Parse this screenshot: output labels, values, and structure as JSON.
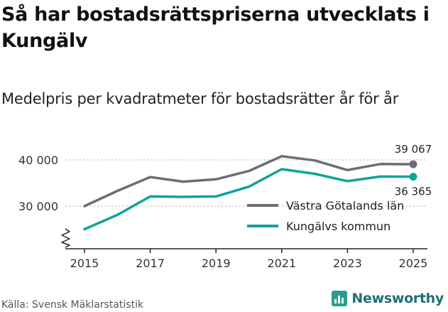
{
  "header": {
    "title": "Så har bostadsrättspriserna utvecklats i Kungälv",
    "subtitle": "Medelpris per kvadratmeter för bostadsrätter år för år"
  },
  "footer": {
    "source": "Källa: Svensk Mäklarstatistik",
    "brand": "Newsworthy"
  },
  "colors": {
    "vastra_gotaland": "#6d6d72",
    "kungalv": "#11a398",
    "grid": "#c8c8c8",
    "axis": "#222222",
    "brand": "#2a9d8f"
  },
  "chart_data": {
    "type": "line",
    "title": "Så har bostadsrättspriserna utvecklats i Kungälv",
    "subtitle": "Medelpris per kvadratmeter för bostadsrätter år för år",
    "xlabel": "",
    "ylabel": "",
    "x": [
      2015,
      2016,
      2017,
      2018,
      2019,
      2020,
      2021,
      2022,
      2023,
      2024,
      2025
    ],
    "x_ticks": [
      2015,
      2017,
      2019,
      2021,
      2023,
      2025
    ],
    "x_tick_labels": [
      "2015",
      "2017",
      "2019",
      "2021",
      "2023",
      "2025"
    ],
    "y_ticks": [
      30000,
      40000
    ],
    "y_tick_labels": [
      "30 000",
      "40 000"
    ],
    "ylim": [
      21000,
      42000
    ],
    "xlim": [
      2014.5,
      2025.5
    ],
    "grid": true,
    "legend_position": "right",
    "series": [
      {
        "name": "Västra Götalands län",
        "color": "#6d6d72",
        "values": [
          30000,
          33300,
          36300,
          35300,
          35800,
          37600,
          40800,
          39900,
          37800,
          39100,
          39067
        ],
        "end_label": "39 067"
      },
      {
        "name": "Kungälvs kommun",
        "color": "#11a398",
        "values": [
          25000,
          28100,
          32100,
          32000,
          32100,
          34200,
          38000,
          37000,
          35400,
          36400,
          36365
        ],
        "end_label": "36 365"
      }
    ]
  }
}
